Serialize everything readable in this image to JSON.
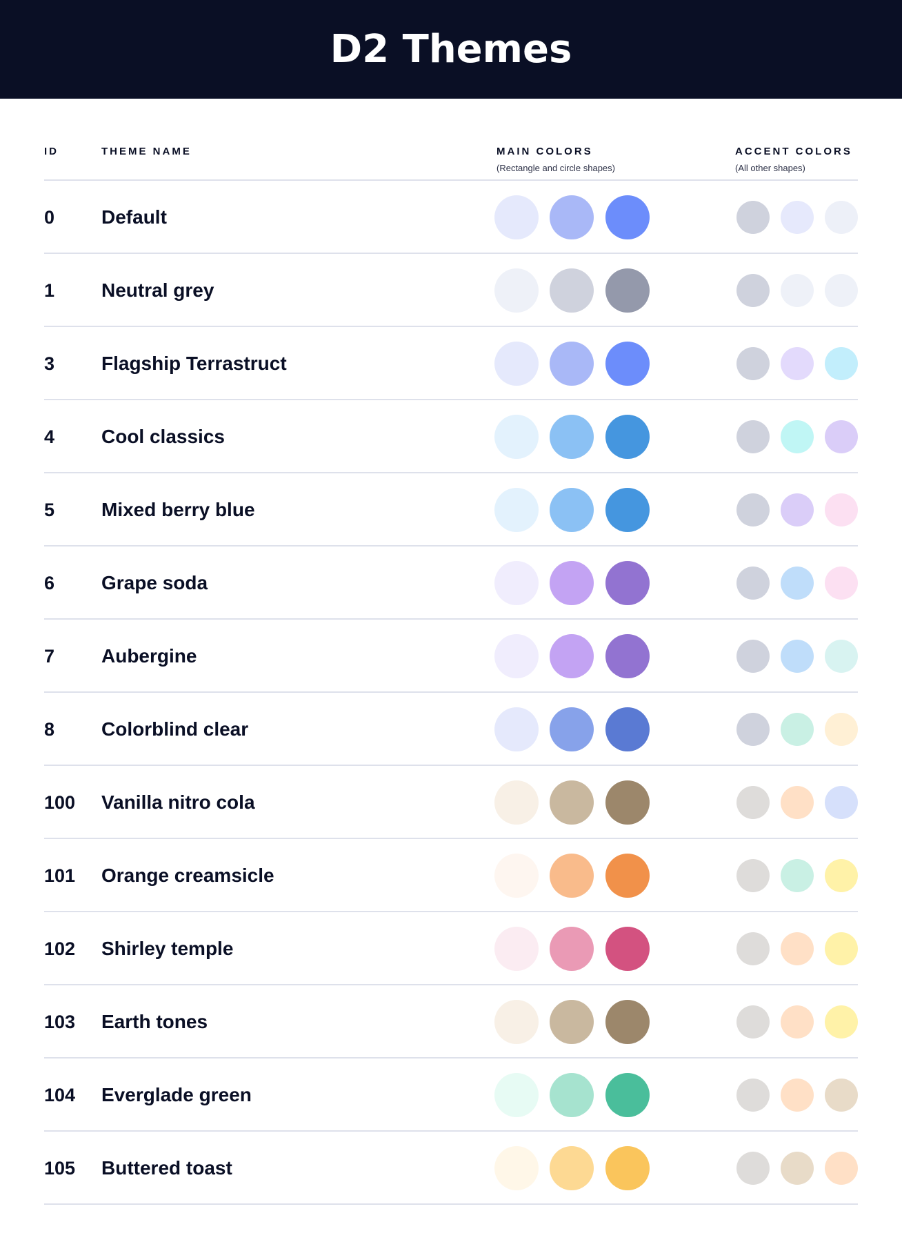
{
  "header": {
    "title": "D2 Themes",
    "background": "#0A0F25"
  },
  "columns": {
    "id": "ID",
    "name": "THEME NAME",
    "main": "MAIN COLORS",
    "main_sub": "(Rectangle and circle shapes)",
    "accent": "ACCENT COLORS",
    "accent_sub": "(All other shapes)"
  },
  "themes": [
    {
      "id": "0",
      "name": "Default",
      "main": [
        "#E5E9FC",
        "#A9B8F7",
        "#6C8DFB"
      ],
      "accent": [
        "#CFD2DD",
        "#E6E9FC",
        "#EDF0F8"
      ]
    },
    {
      "id": "1",
      "name": "Neutral grey",
      "main": [
        "#EEF1F8",
        "#CFD2DD",
        "#9499AB"
      ],
      "accent": [
        "#CFD2DD",
        "#EEF1F8",
        "#EEF1F8"
      ]
    },
    {
      "id": "3",
      "name": "Flagship Terrastruct",
      "main": [
        "#E5E9FC",
        "#A9B8F7",
        "#6C8DFB"
      ],
      "accent": [
        "#CFD2DD",
        "#E3DAFC",
        "#C2EEFC"
      ]
    },
    {
      "id": "4",
      "name": "Cool classics",
      "main": [
        "#E3F2FD",
        "#8BC1F4",
        "#4596DF"
      ],
      "accent": [
        "#CFD2DD",
        "#C0F6F5",
        "#DACDF8"
      ]
    },
    {
      "id": "5",
      "name": "Mixed berry blue",
      "main": [
        "#E3F2FD",
        "#8BC1F4",
        "#4596DF"
      ],
      "accent": [
        "#CFD2DD",
        "#DACDF8",
        "#FCE0F2"
      ]
    },
    {
      "id": "6",
      "name": "Grape soda",
      "main": [
        "#F0EDFD",
        "#C3A3F3",
        "#9273D1"
      ],
      "accent": [
        "#CFD2DD",
        "#BFDDFA",
        "#FCE0F2"
      ]
    },
    {
      "id": "7",
      "name": "Aubergine",
      "main": [
        "#F0EDFD",
        "#C3A3F3",
        "#9273D1"
      ],
      "accent": [
        "#CFD2DD",
        "#BFDDFA",
        "#D8F3F1"
      ]
    },
    {
      "id": "8",
      "name": "Colorblind clear",
      "main": [
        "#E5E9FC",
        "#87A2EA",
        "#5A7AD3"
      ],
      "accent": [
        "#CFD2DD",
        "#C9F0E4",
        "#FFF0D5"
      ]
    },
    {
      "id": "100",
      "name": "Vanilla nitro cola",
      "main": [
        "#F8F0E6",
        "#C9B89F",
        "#9C876B"
      ],
      "accent": [
        "#DEDCDA",
        "#FFE0C6",
        "#D6E0FB"
      ]
    },
    {
      "id": "101",
      "name": "Orange creamsicle",
      "main": [
        "#FEF6F0",
        "#F9BB8B",
        "#F1914A"
      ],
      "accent": [
        "#DEDCDA",
        "#C9F0E4",
        "#FFF2A8"
      ]
    },
    {
      "id": "102",
      "name": "Shirley temple",
      "main": [
        "#FBECF2",
        "#EA9AB5",
        "#D35280"
      ],
      "accent": [
        "#DEDCDA",
        "#FFE0C6",
        "#FFF2A8"
      ]
    },
    {
      "id": "103",
      "name": "Earth tones",
      "main": [
        "#F8F0E6",
        "#C9B89F",
        "#9C876B"
      ],
      "accent": [
        "#DEDCDA",
        "#FFE0C6",
        "#FFF2A8"
      ]
    },
    {
      "id": "104",
      "name": "Everglade green",
      "main": [
        "#E7FBF4",
        "#A6E3CF",
        "#4ABE9B"
      ],
      "accent": [
        "#DEDCDA",
        "#FFE0C6",
        "#E8DBC8"
      ]
    },
    {
      "id": "105",
      "name": "Buttered toast",
      "main": [
        "#FFF7E8",
        "#FDD993",
        "#FAC55C"
      ],
      "accent": [
        "#DEDCDA",
        "#E8DBC8",
        "#FFE0C6"
      ]
    }
  ]
}
